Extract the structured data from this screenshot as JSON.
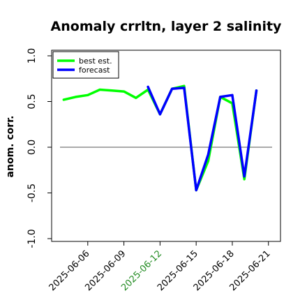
{
  "chart_data": {
    "type": "line",
    "title": "Anomaly crrltn, layer 2 salinity",
    "xlabel": "",
    "ylabel": "anom. corr.",
    "ylim": [
      -1.0,
      1.0
    ],
    "yticks": [
      "1.0",
      "0.5",
      "0.0",
      "-0.5",
      "-1.0"
    ],
    "ytick_values": [
      1.0,
      0.5,
      0.0,
      -0.5,
      -1.0
    ],
    "x": [
      "2025-06-04",
      "2025-06-05",
      "2025-06-06",
      "2025-06-07",
      "2025-06-08",
      "2025-06-09",
      "2025-06-10",
      "2025-06-11",
      "2025-06-12",
      "2025-06-13",
      "2025-06-14",
      "2025-06-15",
      "2025-06-16",
      "2025-06-17",
      "2025-06-18",
      "2025-06-19",
      "2025-06-20",
      "2025-06-21"
    ],
    "xlim": [
      "2025-06-03",
      "2025-06-22"
    ],
    "xtick_dates": [
      "2025-06-06",
      "2025-06-09",
      "2025-06-12",
      "2025-06-15",
      "2025-06-18",
      "2025-06-21"
    ],
    "xticks": [
      "2025-06-06",
      "2025-06-09",
      "2025-06-12",
      "2025-06-15",
      "2025-06-18",
      "2025-06-21"
    ],
    "xtick_colors": [
      "#000000",
      "#000000",
      "#228b22",
      "#000000",
      "#000000",
      "#000000"
    ],
    "series": [
      {
        "name": "best est.",
        "color": "#00ff00",
        "values": [
          0.52,
          0.55,
          0.57,
          0.63,
          0.62,
          0.61,
          0.54,
          0.63,
          0.36,
          0.64,
          0.67,
          -0.47,
          -0.15,
          0.55,
          0.48,
          -0.35,
          0.62,
          null
        ]
      },
      {
        "name": "forecast",
        "color": "#0000ff",
        "values": [
          null,
          null,
          null,
          null,
          null,
          null,
          null,
          0.66,
          0.36,
          0.64,
          0.65,
          -0.47,
          -0.08,
          0.55,
          0.57,
          -0.32,
          0.62,
          null
        ]
      }
    ],
    "hline": 0.0,
    "grid": false,
    "legend_position": "top-left"
  }
}
